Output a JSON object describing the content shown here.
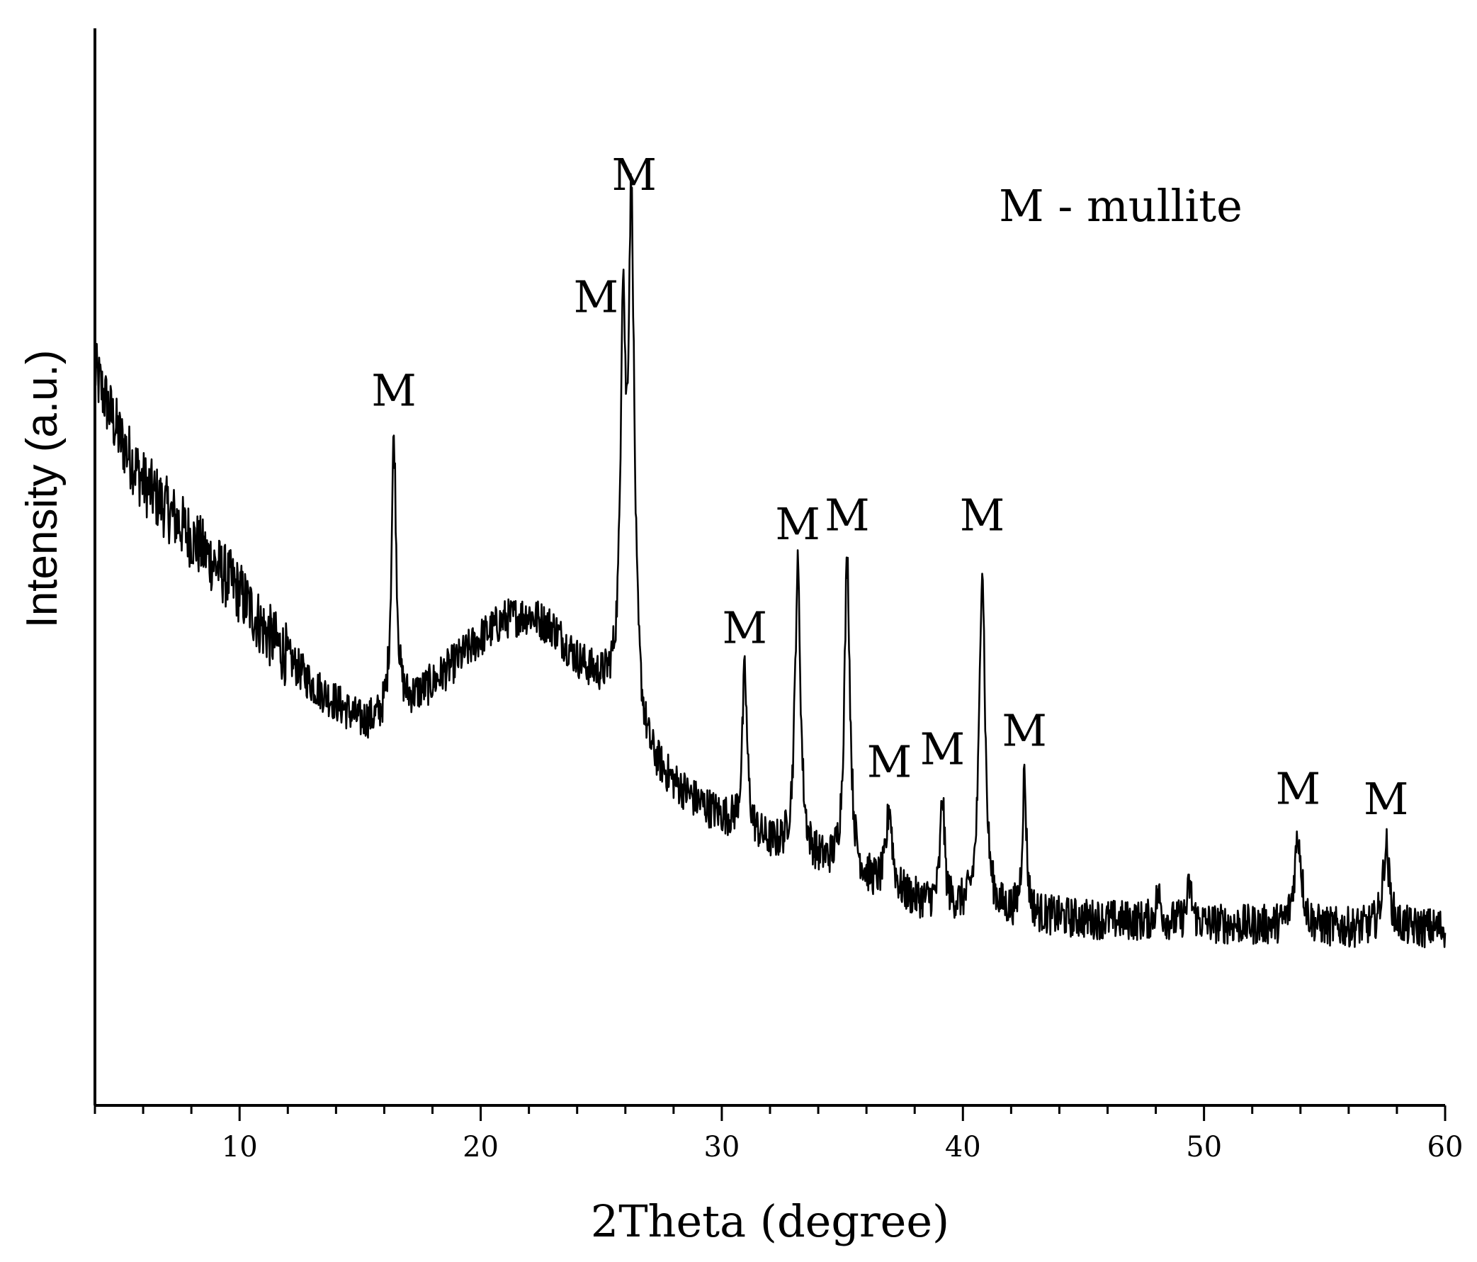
{
  "chart_data": {
    "type": "line",
    "xlabel": "2Theta (degree)",
    "ylabel": "Intensity (a.u.)",
    "xlim": [
      4,
      60
    ],
    "ylim": [
      0,
      100
    ],
    "x_ticks": [
      10,
      20,
      30,
      40,
      50,
      60
    ],
    "x_minor_step": 2,
    "y_ticks_shown": false,
    "grid": false,
    "legend_text": "M - mullite",
    "legend_position": "top-right",
    "line_color": "#000000",
    "baseline": [
      [
        4,
        72
      ],
      [
        5,
        65
      ],
      [
        6,
        60
      ],
      [
        7,
        57
      ],
      [
        8,
        54
      ],
      [
        9,
        51
      ],
      [
        10,
        48
      ],
      [
        11,
        44
      ],
      [
        12,
        41
      ],
      [
        13,
        38
      ],
      [
        14,
        36
      ],
      [
        15,
        34
      ],
      [
        15.8,
        34
      ],
      [
        16.5,
        35
      ],
      [
        17,
        36
      ],
      [
        18,
        38
      ],
      [
        19,
        40.5
      ],
      [
        20,
        43
      ],
      [
        21,
        45
      ],
      [
        22,
        45.5
      ],
      [
        23,
        44
      ],
      [
        24,
        40.5
      ],
      [
        25,
        38
      ],
      [
        25.5,
        37
      ],
      [
        26.5,
        32
      ],
      [
        27,
        29.5
      ],
      [
        28,
        27
      ],
      [
        29,
        25
      ],
      [
        30,
        23.5
      ],
      [
        31,
        22
      ],
      [
        32,
        20.5
      ],
      [
        33,
        19.5
      ],
      [
        34,
        18.5
      ],
      [
        35,
        17.5
      ],
      [
        36,
        16.5
      ],
      [
        37,
        15.5
      ],
      [
        38,
        14.5
      ],
      [
        39,
        14
      ],
      [
        40,
        13.5
      ],
      [
        42,
        13
      ],
      [
        45,
        12.5
      ],
      [
        50,
        12
      ],
      [
        55,
        11.5
      ],
      [
        60,
        11.5
      ]
    ],
    "peaks": [
      {
        "x": 16.4,
        "height": 30,
        "width": 0.12,
        "label": "M"
      },
      {
        "x": 25.9,
        "height": 40,
        "width": 0.12,
        "label": "M"
      },
      {
        "x": 26.25,
        "height": 55,
        "width": 0.15,
        "label": "M"
      },
      {
        "x": 30.95,
        "height": 17,
        "width": 0.12,
        "label": "M"
      },
      {
        "x": 33.15,
        "height": 31,
        "width": 0.14,
        "label": "M"
      },
      {
        "x": 35.2,
        "height": 34,
        "width": 0.14,
        "label": "M"
      },
      {
        "x": 36.95,
        "height": 9,
        "width": 0.14,
        "label": "M"
      },
      {
        "x": 39.15,
        "height": 12,
        "width": 0.1,
        "label": "M"
      },
      {
        "x": 40.8,
        "height": 38,
        "width": 0.14,
        "label": "M"
      },
      {
        "x": 42.55,
        "height": 15,
        "width": 0.1,
        "label": "M"
      },
      {
        "x": 48.1,
        "height": 3,
        "width": 0.12
      },
      {
        "x": 49.4,
        "height": 4,
        "width": 0.12
      },
      {
        "x": 53.9,
        "height": 10,
        "width": 0.18,
        "label": "M"
      },
      {
        "x": 57.55,
        "height": 9,
        "width": 0.16,
        "label": "M"
      }
    ],
    "noise_amplitude": 2.2,
    "peak_label_text": "M"
  }
}
